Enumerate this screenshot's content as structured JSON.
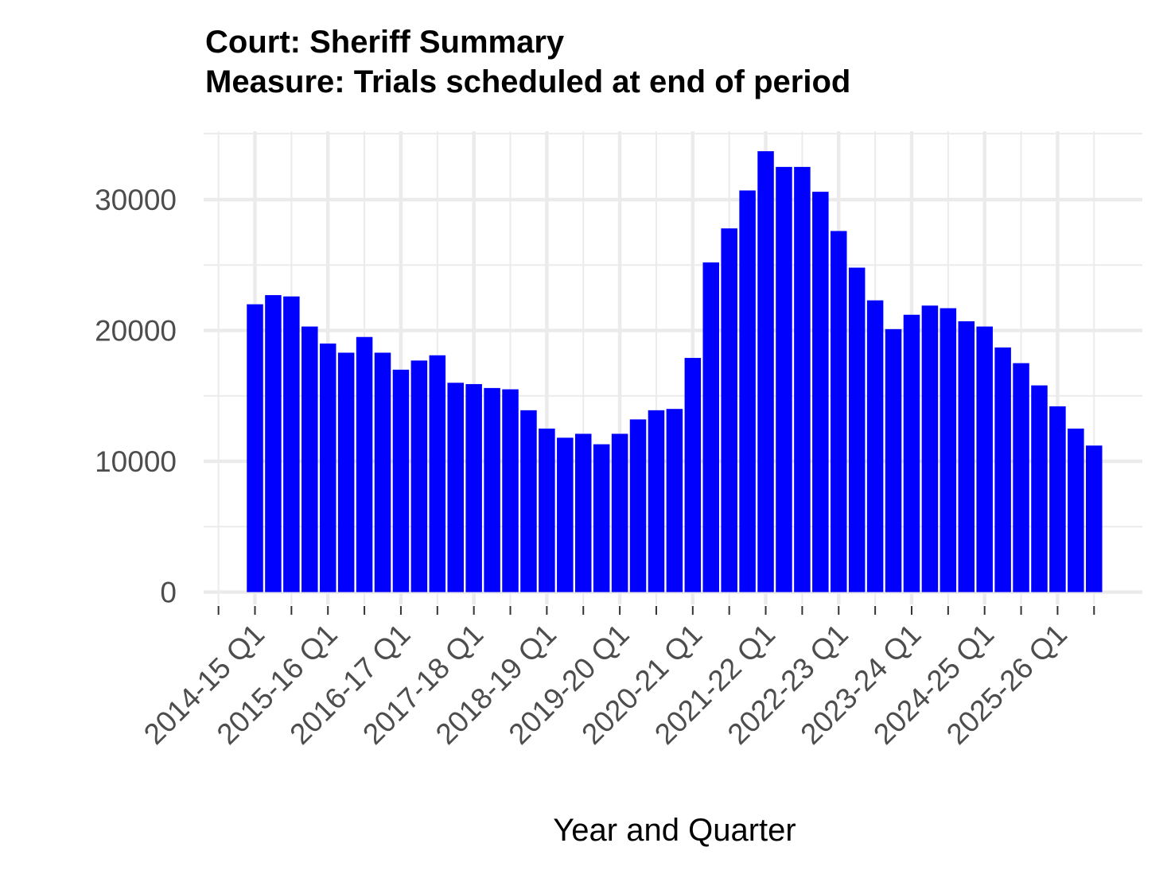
{
  "chart_data": {
    "type": "bar",
    "title": "Court: Sheriff Summary",
    "subtitle": "Measure: Trials scheduled at end of period",
    "xlabel": "Year and Quarter",
    "ylabel": "",
    "ylim": [
      0,
      35000
    ],
    "y_ticks": [
      0,
      10000,
      20000,
      30000
    ],
    "y_tick_labels": [
      "0",
      "10000",
      "20000",
      "30000"
    ],
    "x_tick_labels": [
      "2014-15 Q1",
      "2015-16 Q1",
      "2016-17 Q1",
      "2017-18 Q1",
      "2018-19 Q1",
      "2019-20 Q1",
      "2020-21 Q1",
      "2021-22 Q1",
      "2022-23 Q1",
      "2023-24 Q1",
      "2024-25 Q1",
      "2025-26 Q1"
    ],
    "grid": true,
    "legend": "none",
    "bar_color": "#0000ff",
    "categories": [
      "2014-15 Q1",
      "2014-15 Q2",
      "2014-15 Q3",
      "2014-15 Q4",
      "2015-16 Q1",
      "2015-16 Q2",
      "2015-16 Q3",
      "2015-16 Q4",
      "2016-17 Q1",
      "2016-17 Q2",
      "2016-17 Q3",
      "2016-17 Q4",
      "2017-18 Q1",
      "2017-18 Q2",
      "2017-18 Q3",
      "2017-18 Q4",
      "2018-19 Q1",
      "2018-19 Q2",
      "2018-19 Q3",
      "2018-19 Q4",
      "2019-20 Q1",
      "2019-20 Q2",
      "2019-20 Q3",
      "2019-20 Q4",
      "2020-21 Q1",
      "2020-21 Q2",
      "2020-21 Q3",
      "2020-21 Q4",
      "2021-22 Q1",
      "2021-22 Q2",
      "2021-22 Q3",
      "2021-22 Q4",
      "2022-23 Q1",
      "2022-23 Q2",
      "2022-23 Q3",
      "2022-23 Q4",
      "2023-24 Q1",
      "2023-24 Q2",
      "2023-24 Q3",
      "2023-24 Q4",
      "2024-25 Q1",
      "2024-25 Q2",
      "2024-25 Q3",
      "2024-25 Q4",
      "2025-26 Q1",
      "2025-26 Q2",
      "2025-26 Q3"
    ],
    "values": [
      22000,
      22700,
      22600,
      20300,
      19000,
      18300,
      19500,
      18300,
      17000,
      17700,
      18100,
      16000,
      15900,
      15600,
      15500,
      13900,
      12500,
      11800,
      12100,
      11300,
      12100,
      13200,
      13900,
      14000,
      17900,
      25200,
      27800,
      30700,
      33700,
      32500,
      32500,
      30600,
      27600,
      24800,
      22300,
      20100,
      21200,
      21900,
      21700,
      20700,
      20300,
      18700,
      17500,
      15800,
      14200,
      12500,
      11200
    ]
  }
}
